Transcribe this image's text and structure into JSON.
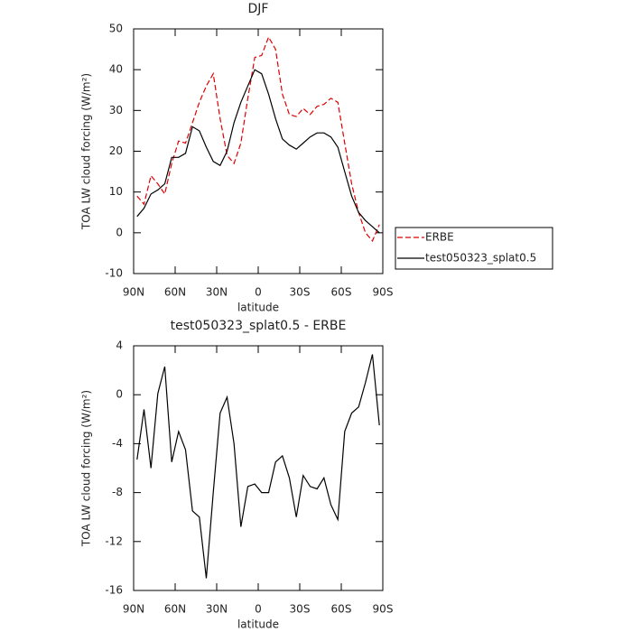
{
  "chart_data": [
    {
      "type": "line",
      "title": "DJF",
      "xlabel": "latitude",
      "ylabel": "TOA LW cloud forcing (W/m²)",
      "x": [
        87.5,
        82.5,
        77.5,
        72.5,
        67.5,
        62.5,
        57.5,
        52.5,
        47.5,
        42.5,
        37.5,
        32.5,
        27.5,
        22.5,
        17.5,
        12.5,
        7.5,
        2.5,
        -2.5,
        -7.5,
        -12.5,
        -17.5,
        -22.5,
        -27.5,
        -32.5,
        -37.5,
        -42.5,
        -47.5,
        -52.5,
        -57.5,
        -62.5,
        -67.5,
        -72.5,
        -77.5,
        -82.5,
        -87.5
      ],
      "series": [
        {
          "name": "ERBE",
          "color": "#e00000",
          "line_style": "dashed",
          "values": [
            9,
            7,
            14,
            12,
            9.5,
            17,
            22.5,
            22,
            27,
            32,
            36,
            39,
            28,
            19,
            17,
            22,
            33,
            43,
            43.5,
            48,
            45,
            34,
            29,
            28.5,
            30.5,
            29,
            31,
            31.5,
            33,
            32,
            22,
            12,
            5,
            0,
            -2,
            2
          ]
        },
        {
          "name": "test050323_splat0.5",
          "color": "#000000",
          "line_style": "solid",
          "values": [
            4,
            6,
            9.5,
            10.5,
            12,
            18.5,
            18.5,
            19.5,
            26,
            25,
            21,
            17.5,
            16.5,
            20,
            27,
            32,
            36,
            40,
            39,
            34,
            28,
            23,
            21.5,
            20.5,
            22,
            23.5,
            24.5,
            24.5,
            23.5,
            21,
            15,
            9,
            5,
            3,
            1.5,
            0
          ]
        }
      ],
      "xlim": [
        90,
        -90
      ],
      "xticks": [
        {
          "value": 90,
          "label": "90N"
        },
        {
          "value": 60,
          "label": "60N"
        },
        {
          "value": 30,
          "label": "30N"
        },
        0,
        {
          "value": -30,
          "label": "30S"
        },
        {
          "value": -60,
          "label": "60S"
        },
        {
          "value": -90,
          "label": "90S"
        }
      ],
      "ylim": [
        -10,
        50
      ],
      "yticks": [
        -10,
        0,
        10,
        20,
        30,
        40,
        50
      ],
      "legend": "right"
    },
    {
      "type": "line",
      "title": "test050323_splat0.5 - ERBE",
      "xlabel": "latitude",
      "ylabel": "TOA LW cloud forcing (W/m²)",
      "x": [
        87.5,
        82.5,
        77.5,
        72.5,
        67.5,
        62.5,
        57.5,
        52.5,
        47.5,
        42.5,
        37.5,
        32.5,
        27.5,
        22.5,
        17.5,
        12.5,
        7.5,
        2.5,
        -2.5,
        -7.5,
        -12.5,
        -17.5,
        -22.5,
        -27.5,
        -32.5,
        -37.5,
        -42.5,
        -47.5,
        -52.5,
        -57.5,
        -62.5,
        -67.5,
        -72.5,
        -77.5,
        -82.5,
        -87.5
      ],
      "values": [
        -5.3,
        -1.2,
        -6,
        0.1,
        2.3,
        -5.5,
        -3,
        -4.5,
        -9.5,
        -10,
        -15,
        -8,
        -1.5,
        -0.2,
        -4,
        -10.8,
        -7.5,
        -7.3,
        -8,
        -8,
        -5.5,
        -5,
        -6.8,
        -10,
        -6.6,
        -7.5,
        -7.7,
        -6.8,
        -9,
        -10.2,
        -3,
        -1.5,
        -1,
        1,
        3.3,
        -2.5
      ],
      "color": "#000000",
      "xlim": [
        90,
        -90
      ],
      "xticks": [
        {
          "value": 90,
          "label": "90N"
        },
        {
          "value": 60,
          "label": "60N"
        },
        {
          "value": 30,
          "label": "30N"
        },
        0,
        {
          "value": -30,
          "label": "30S"
        },
        {
          "value": -60,
          "label": "60S"
        },
        {
          "value": -90,
          "label": "90S"
        }
      ],
      "ylim": [
        -16,
        4
      ],
      "yticks": [
        -16,
        -12,
        -8,
        -4,
        0,
        4
      ]
    }
  ]
}
